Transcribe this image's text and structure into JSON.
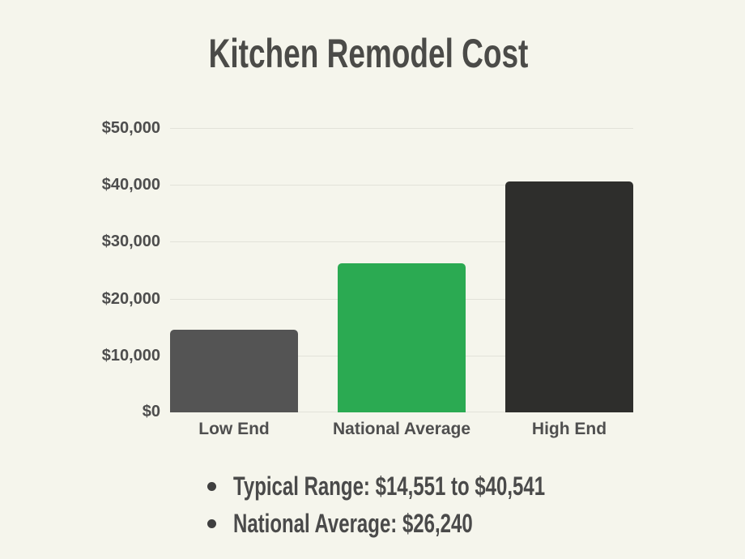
{
  "page": {
    "background_color": "#f5f5ec",
    "title_color": "#4b4b48",
    "axis_label_color": "#4f4f4f",
    "gridline_color": "#e2e2d9",
    "note_text_color": "#4a4a4a"
  },
  "chart_data": {
    "type": "bar",
    "title": "Kitchen Remodel Cost",
    "categories": [
      "Low End",
      "National Average",
      "High End"
    ],
    "values": [
      14551,
      26240,
      40541
    ],
    "bar_colors": [
      "#545454",
      "#2baa52",
      "#2e2e2c"
    ],
    "xlabel": "",
    "ylabel": "",
    "ylim": [
      0,
      50000
    ],
    "ytick_interval": 10000,
    "ytick_labels": [
      "$0",
      "$10,000",
      "$20,000",
      "$30,000",
      "$40,000",
      "$50,000"
    ],
    "grid": "horizontal gridlines only",
    "legend": "none"
  },
  "notes": {
    "items": [
      "Typical Range: $14,551 to $40,541",
      "National Average: $26,240"
    ]
  }
}
